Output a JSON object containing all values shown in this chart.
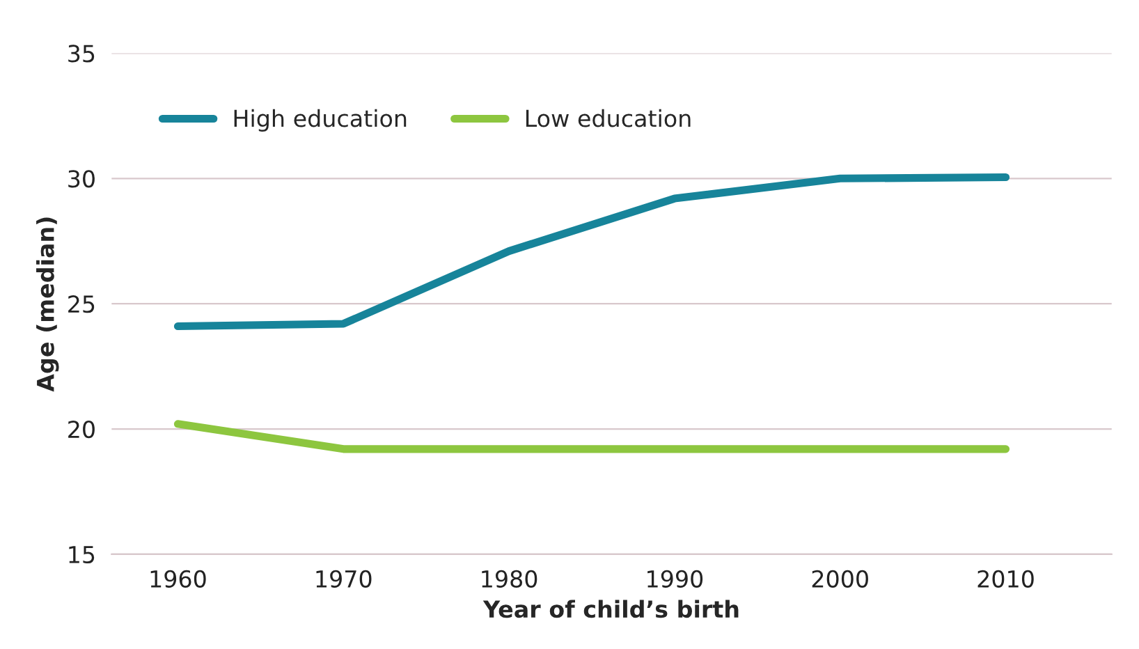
{
  "chart_data": {
    "type": "line",
    "xlabel": "Year of child’s birth",
    "ylabel": "Age (median)",
    "x": [
      1960,
      1970,
      1980,
      1990,
      2000,
      2010
    ],
    "series": [
      {
        "name": "High education",
        "color": "#17849a",
        "values": [
          24.1,
          24.2,
          27.1,
          29.2,
          30.0,
          30.05
        ]
      },
      {
        "name": "Low education",
        "color": "#8dc63f",
        "values": [
          20.2,
          19.2,
          19.2,
          19.2,
          19.2,
          19.2
        ]
      }
    ],
    "xlim": [
      1956,
      2016.4
    ],
    "xticks": [
      1960,
      1970,
      1980,
      1990,
      2000,
      2010
    ],
    "ylim": [
      15,
      35
    ],
    "yticks": [
      15,
      20,
      25,
      30,
      35
    ],
    "grid": "y",
    "legend": "top left"
  }
}
